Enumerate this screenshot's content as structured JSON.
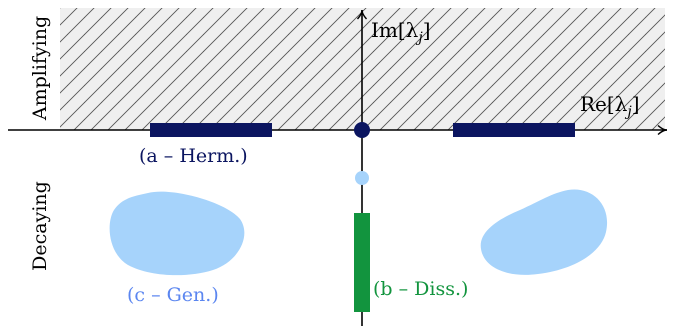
{
  "region_labels": {
    "upper": "Amplifying",
    "lower": "Decaying"
  },
  "axes": {
    "x_label": "Re[λ",
    "x_sub": "j",
    "x_close": "]",
    "y_label": "Im[λ",
    "y_sub": "j",
    "y_close": "]"
  },
  "cases": {
    "a": "(a – Herm.)",
    "b": "(b – Diss.)",
    "c": "(c – Gen.)"
  },
  "colors": {
    "hermitian": "#0b1560",
    "dissipative": "#12943e",
    "general": "#a6d3fb",
    "general_label": "#5b86f0",
    "hatch_fill": "#efefef",
    "hatch_line": "#555555",
    "axis": "#000000"
  }
}
